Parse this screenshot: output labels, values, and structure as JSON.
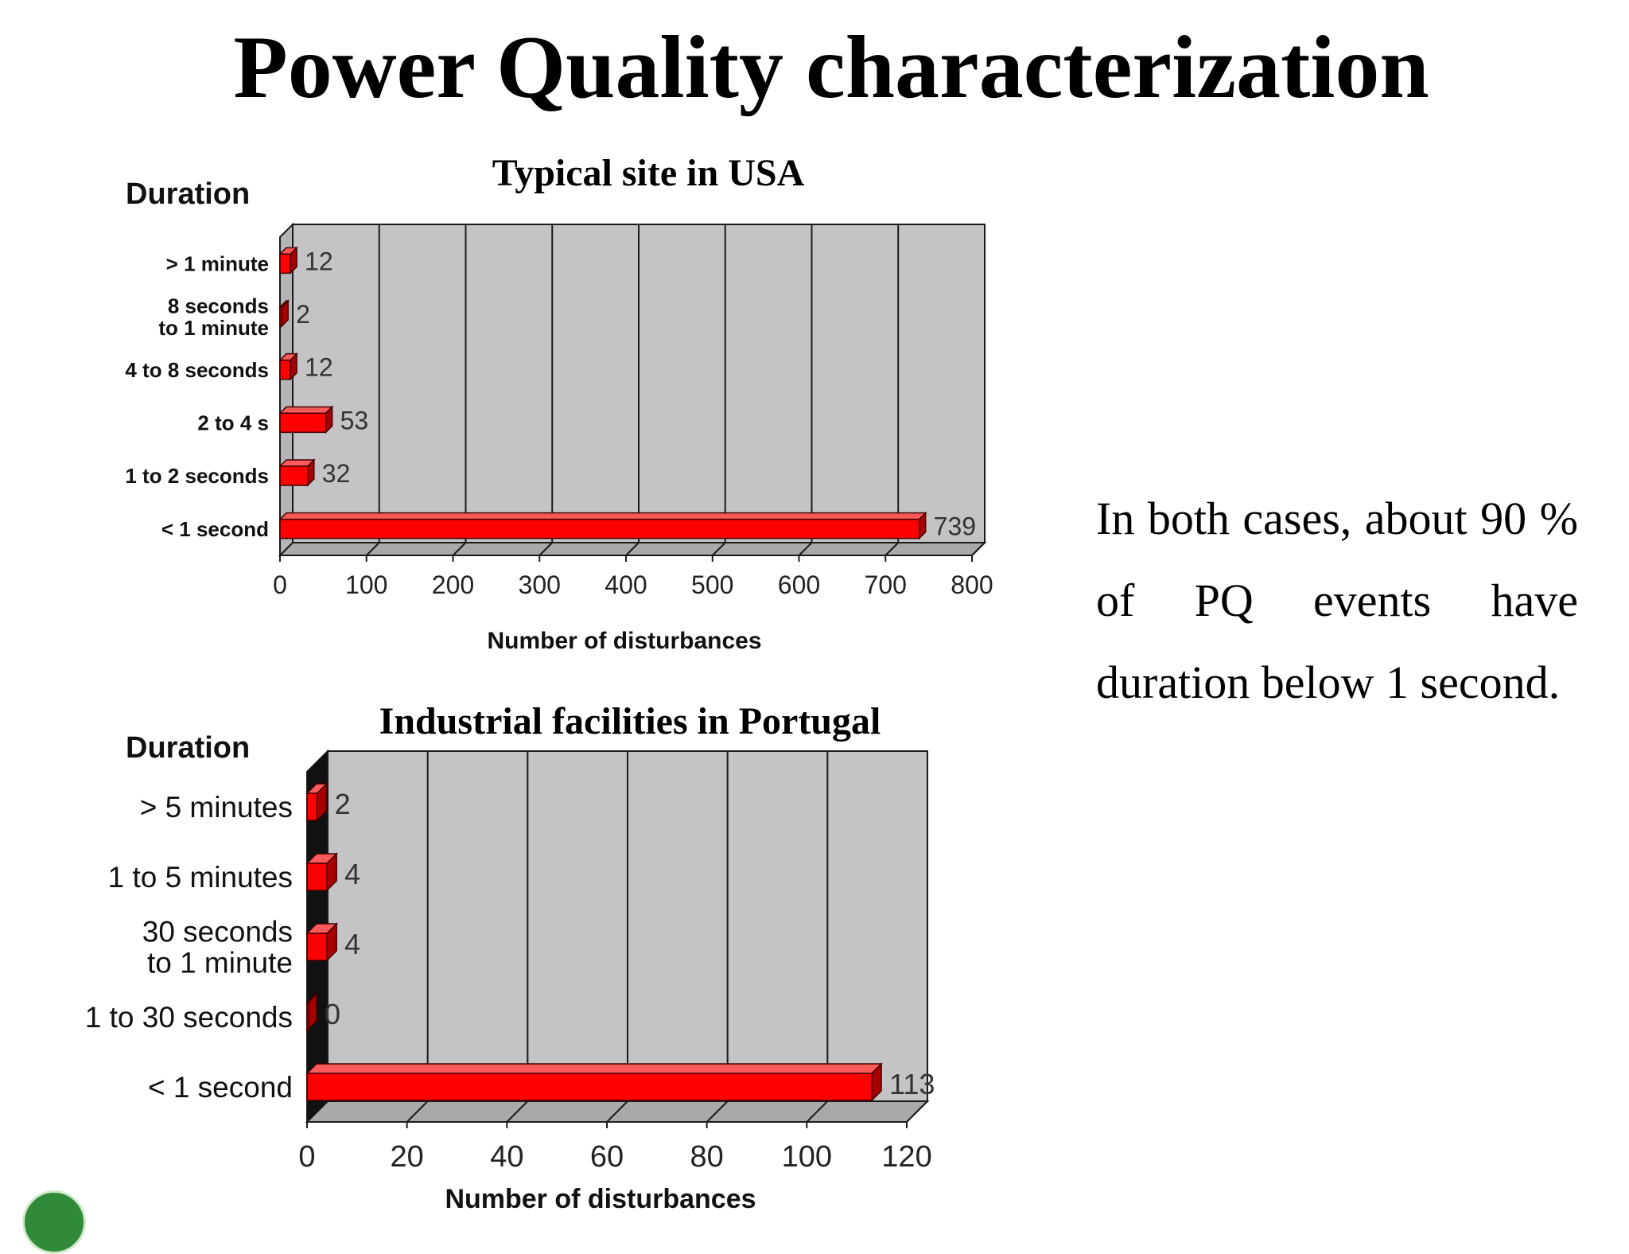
{
  "slide": {
    "title": "Power Quality characterization",
    "note": "In both cases, about 90 % of PQ events have duration below 1 second."
  },
  "colors": {
    "bar": "#ff0000",
    "bar_top": "#ff5a5a",
    "bar_side": "#a80000",
    "plot_bg": "#c4c3c5",
    "grid": "#1a1a1a"
  },
  "chart_data": [
    {
      "type": "bar",
      "orientation": "horizontal",
      "style": "3d",
      "title": "Typical site in USA",
      "ylabel": "Duration",
      "xlabel": "Number of disturbances",
      "categories": [
        "> 1 minute",
        "8 seconds to 1 minute",
        "4 to 8 seconds",
        "2 to 4 s",
        "1 to 2 seconds",
        "< 1 second"
      ],
      "category_lines": [
        [
          "> 1 minute"
        ],
        [
          "8 seconds",
          "to 1 minute"
        ],
        [
          "4 to 8 seconds"
        ],
        [
          "2 to 4 s"
        ],
        [
          "1 to 2 seconds"
        ],
        [
          "< 1 second"
        ]
      ],
      "values": [
        12,
        2,
        12,
        53,
        32,
        739
      ],
      "data_labels": [
        "12",
        "2",
        "12",
        "53",
        "32",
        "739"
      ],
      "xlim": [
        0,
        800
      ],
      "xticks": [
        0,
        100,
        200,
        300,
        400,
        500,
        600,
        700,
        800
      ],
      "grid": true,
      "legend": "none"
    },
    {
      "type": "bar",
      "orientation": "horizontal",
      "style": "3d",
      "title": "Industrial facilities in Portugal",
      "ylabel": "Duration",
      "xlabel": "Number of disturbances",
      "categories": [
        "> 5 minutes",
        "1 to 5 minutes",
        "30 seconds to 1 minute",
        "1 to 30 seconds",
        "< 1 second"
      ],
      "category_lines": [
        [
          "> 5 minutes"
        ],
        [
          "1 to 5 minutes"
        ],
        [
          "30 seconds",
          "to 1 minute"
        ],
        [
          "1 to 30 seconds"
        ],
        [
          "< 1 second"
        ]
      ],
      "values": [
        2,
        4,
        4,
        0,
        113
      ],
      "data_labels": [
        "2",
        "4",
        "4",
        "0",
        "113"
      ],
      "xlim": [
        0,
        120
      ],
      "xticks": [
        0,
        20,
        40,
        60,
        80,
        100,
        120
      ],
      "grid": true,
      "legend": "none"
    }
  ]
}
